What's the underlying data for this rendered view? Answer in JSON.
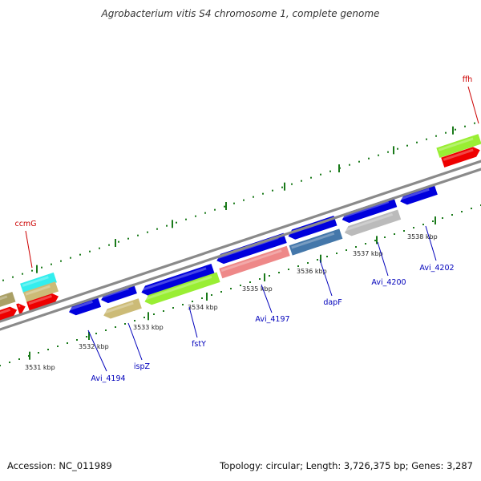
{
  "title": "Agrobacterium vitis S4 chromosome 1, complete genome",
  "footer": {
    "accession": "Accession: NC_011989",
    "topology": "Topology: circular; Length: 3,726,375 bp; Genes: 3,287"
  },
  "colors": {
    "backbone": "#8a8a8a",
    "tick": "#1a7a1a",
    "gene_label": "#0000bb",
    "rna_label": "#cc0000",
    "blue": "#0000dd",
    "red": "#ee0000",
    "lime": "#99ee33",
    "tan": "#ccbb77",
    "cyan": "#33eeee",
    "pink": "#ee8888",
    "steel": "#4477aa",
    "gray": "#bbbbbb",
    "khaki": "#aaa066"
  },
  "scale_labels": [
    "3531 kbp",
    "3532 kbp",
    "3533 kbp",
    "3534 kbp",
    "3535 kbp",
    "3536 kbp",
    "3537 kbp",
    "3538 kbp"
  ],
  "gene_labels": [
    "Avi_4194",
    "ispZ",
    "fstY",
    "Avi_4197",
    "dapF",
    "Avi_4200",
    "Avi_4202"
  ],
  "rna_labels": [
    "ccmG",
    "ffh"
  ],
  "features": [
    {
      "ring": "plus_outer",
      "color": "red",
      "dir": "right"
    },
    {
      "ring": "plus_inner",
      "color": "khaki",
      "dir": "none"
    },
    {
      "ring": "plus_outer",
      "color": "red",
      "dir": "right"
    },
    {
      "ring": "plus_outer",
      "color": "red",
      "dir": "right"
    },
    {
      "ring": "plus_inner",
      "color": "cyan",
      "dir": "none"
    },
    {
      "ring": "plus_inner",
      "color": "tan",
      "dir": "none"
    },
    {
      "ring": "minus_inner",
      "color": "blue",
      "dir": "left"
    },
    {
      "ring": "minus_inner",
      "color": "blue",
      "dir": "left"
    },
    {
      "ring": "minus_outer",
      "color": "tan",
      "dir": "left"
    },
    {
      "ring": "minus_inner",
      "color": "blue",
      "dir": "left"
    },
    {
      "ring": "minus_outer",
      "color": "lime",
      "dir": "left"
    },
    {
      "ring": "minus_inner",
      "color": "blue",
      "dir": "left"
    },
    {
      "ring": "minus_outer",
      "color": "pink",
      "dir": "none"
    },
    {
      "ring": "minus_inner",
      "color": "blue",
      "dir": "left"
    },
    {
      "ring": "minus_outer",
      "color": "steel",
      "dir": "none"
    },
    {
      "ring": "minus_inner",
      "color": "blue",
      "dir": "left"
    },
    {
      "ring": "minus_outer",
      "color": "gray",
      "dir": "left"
    },
    {
      "ring": "minus_inner",
      "color": "blue",
      "dir": "left"
    },
    {
      "ring": "plus_inner",
      "color": "lime",
      "dir": "none"
    },
    {
      "ring": "plus_outer",
      "color": "red",
      "dir": "right"
    }
  ]
}
